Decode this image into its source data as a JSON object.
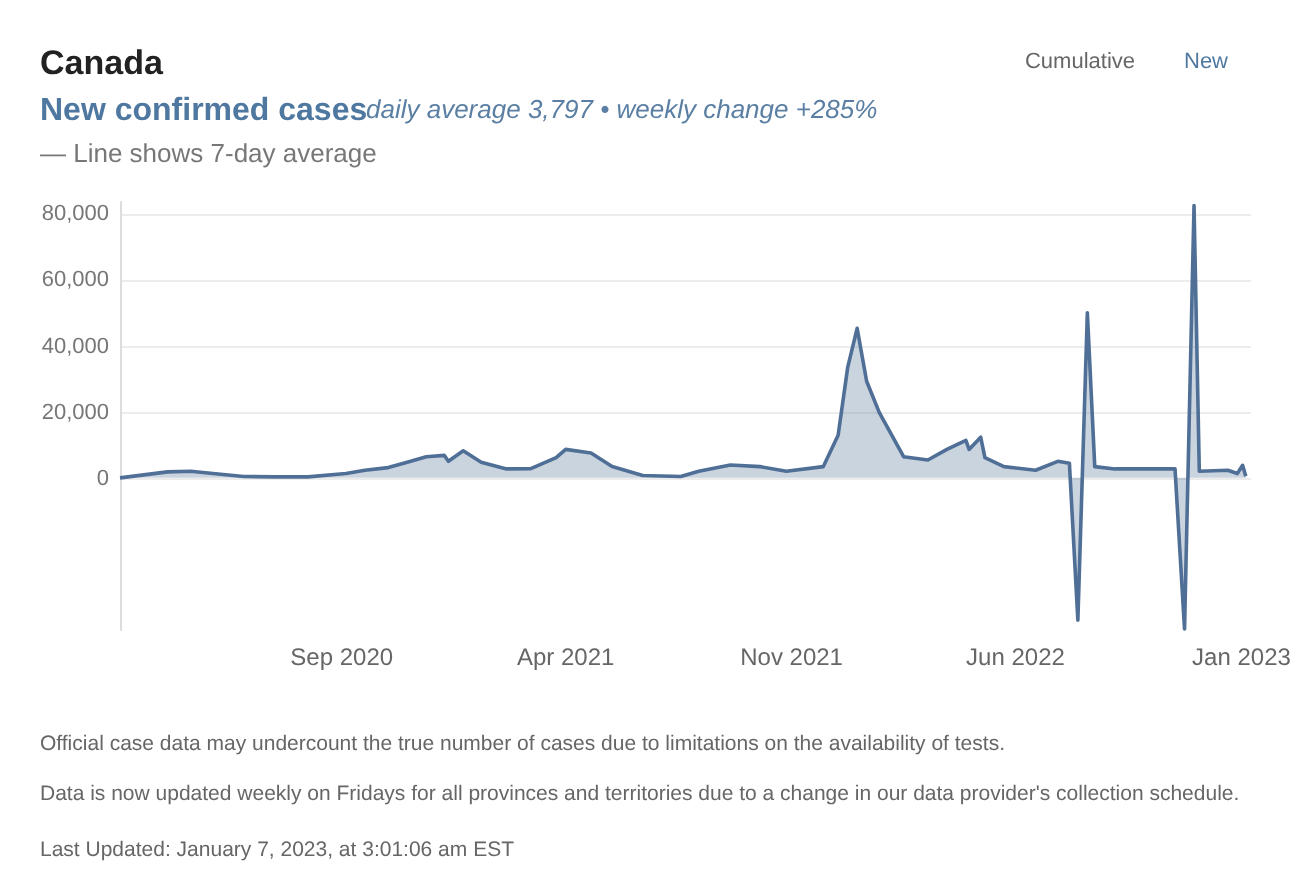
{
  "chart_data": {
    "type": "area",
    "title": "Canada",
    "subtitle": "New confirmed cases",
    "annotations": [
      "daily average 3,797 • weekly change +285%",
      "— Line shows 7-day average",
      "Cumulative",
      "New",
      "Official case data may undercount the true number of cases due to limitations on the availability of tests.",
      "Data is now updated weekly on Fridays for all provinces and territories due to a change in our data provider's collection schedule.",
      "Last Updated: January 7, 2023, at 3:01:06 am EST"
    ],
    "x": [
      "2020-02-05",
      "2020-03-21",
      "2020-04-12",
      "2020-05-03",
      "2020-06-01",
      "2020-07-01",
      "2020-08-01",
      "2020-09-06",
      "2020-09-24",
      "2020-10-16",
      "2020-11-03",
      "2020-11-21",
      "2020-12-08",
      "2020-12-12",
      "2020-12-26",
      "2021-01-12",
      "2021-02-05",
      "2021-02-28",
      "2021-03-24",
      "2021-04-02",
      "2021-04-26",
      "2021-05-16",
      "2021-06-14",
      "2021-07-20",
      "2021-08-06",
      "2021-09-05",
      "2021-10-03",
      "2021-10-28",
      "2021-12-02",
      "2021-12-16",
      "2021-12-25",
      "2022-01-03",
      "2022-01-12",
      "2022-01-24",
      "2022-02-16",
      "2022-03-11",
      "2022-03-29",
      "2022-04-16",
      "2022-04-19",
      "2022-04-30",
      "2022-05-04",
      "2022-05-22",
      "2022-06-21",
      "2022-07-12",
      "2022-07-23",
      "2022-07-31",
      "2022-08-09",
      "2022-08-16",
      "2022-09-04",
      "2022-10-27",
      "2022-10-31",
      "2022-11-09",
      "2022-11-18",
      "2022-11-23",
      "2022-12-20",
      "2022-12-29",
      "2023-01-03",
      "2023-01-06"
    ],
    "series": [
      {
        "color": "#4f6f96",
        "values": [
          0,
          1800,
          2000,
          1300,
          400,
          300,
          300,
          1300,
          2300,
          3100,
          4700,
          6400,
          6800,
          5000,
          8200,
          4700,
          2700,
          2800,
          6100,
          8600,
          7500,
          3400,
          700,
          400,
          2000,
          3900,
          3400,
          2000,
          3400,
          12900,
          33300,
          45200,
          29200,
          19700,
          6400,
          5400,
          8600,
          11300,
          8600,
          12300,
          6100,
          3400,
          2300,
          5000,
          4400,
          -43000,
          49900,
          3400,
          2700,
          2700,
          2700,
          -45700,
          82300,
          2000,
          2300,
          1300,
          3800,
          500
        ]
      }
    ],
    "xlim": [
      "2020-02-05",
      "2023-01-10"
    ],
    "xticks": [
      {
        "value": "2020-09-01",
        "label": "Sep 2020"
      },
      {
        "value": "2021-04-01",
        "label": "Apr 2021"
      },
      {
        "value": "2021-11-01",
        "label": "Nov 2021"
      },
      {
        "value": "2022-06-01",
        "label": "Jun 2022"
      },
      {
        "value": "2023-01-01",
        "label": "Jan 2023"
      }
    ],
    "ylim": [
      -46000,
      84000
    ],
    "yticks": [
      0,
      {
        "value": 20000,
        "label": "20,000"
      },
      {
        "value": 40000,
        "label": "40,000"
      },
      {
        "value": 60000,
        "label": "60,000"
      },
      {
        "value": 80000,
        "label": "80,000"
      }
    ],
    "grid": "y"
  }
}
